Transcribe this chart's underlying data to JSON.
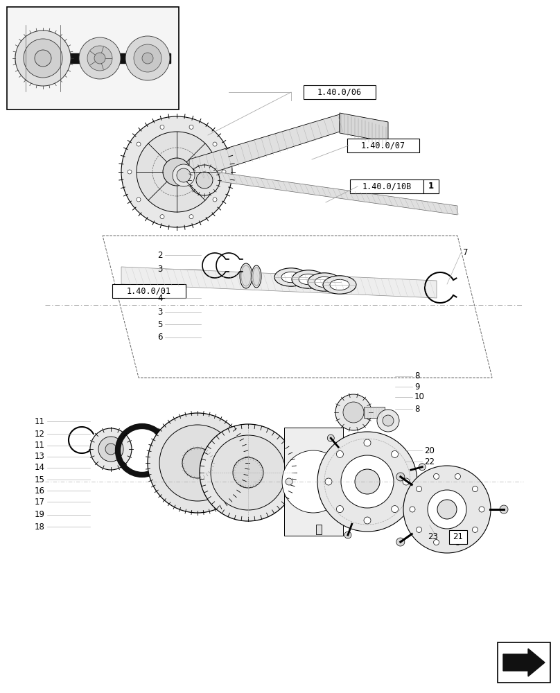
{
  "bg_color": "#ffffff",
  "line_color": "#000000",
  "light_line_color": "#aaaaaa",
  "dark_line_color": "#333333",
  "ref_labels": {
    "r06": "1.40.0/06",
    "r07": "1.40.0/07",
    "r10b": "1.40.0/10B",
    "r10b_num": "1",
    "r01": "1.40.0/01"
  },
  "part_labels_mid": [
    [
      "2",
      235,
      368
    ],
    [
      "3",
      235,
      388
    ],
    [
      "4",
      235,
      430
    ],
    [
      "3",
      235,
      450
    ],
    [
      "5",
      235,
      468
    ],
    [
      "6",
      235,
      487
    ]
  ],
  "part_label_7": [
    "7",
    668,
    365
  ],
  "part_labels_right": [
    [
      "8",
      598,
      543
    ],
    [
      "9",
      598,
      558
    ],
    [
      "10",
      598,
      573
    ],
    [
      "8",
      598,
      590
    ]
  ],
  "part_labels_lower_right": [
    [
      "20",
      612,
      650
    ],
    [
      "22",
      612,
      666
    ]
  ],
  "part_labels_left": [
    [
      "11",
      65,
      608
    ],
    [
      "12",
      65,
      626
    ],
    [
      "11",
      65,
      643
    ],
    [
      "13",
      65,
      659
    ],
    [
      "14",
      65,
      675
    ],
    [
      "15",
      65,
      692
    ],
    [
      "16",
      65,
      708
    ],
    [
      "17",
      65,
      724
    ],
    [
      "19",
      65,
      743
    ],
    [
      "18",
      65,
      760
    ]
  ],
  "label_23": "23",
  "label_21": "21"
}
